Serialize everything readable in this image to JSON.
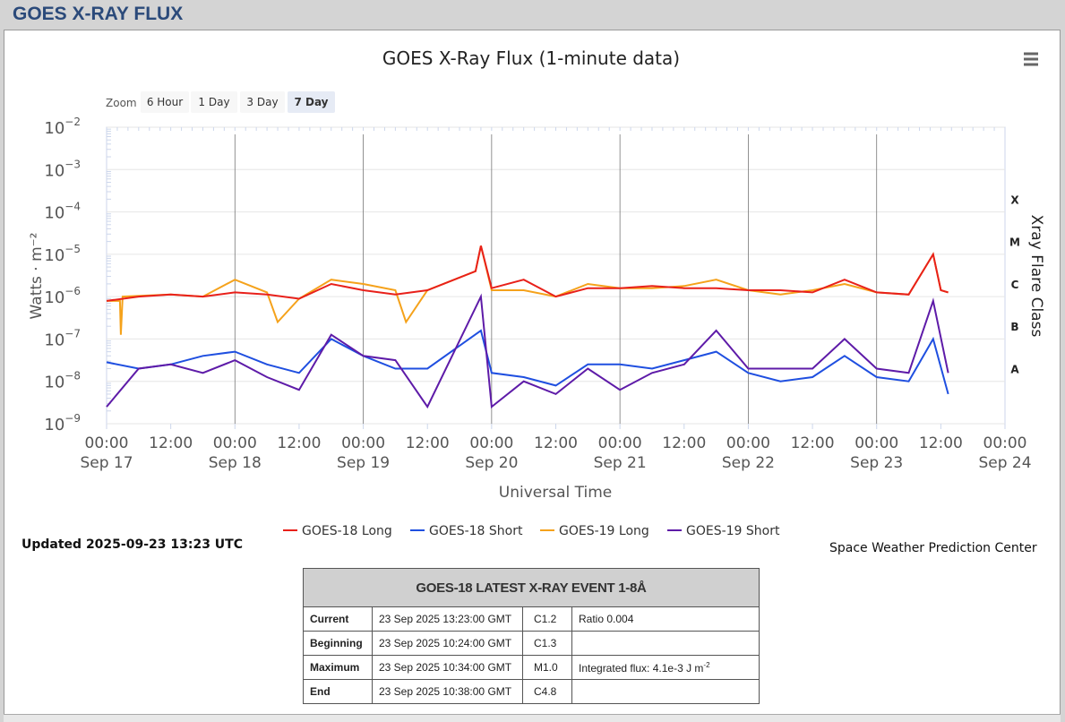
{
  "page": {
    "title": "GOES X-RAY FLUX"
  },
  "updated": "Updated 2025-09-23 13:23 UTC",
  "credit": "Space Weather Prediction Center",
  "zoom": {
    "label": "Zoom",
    "buttons": [
      "6 Hour",
      "1 Day",
      "3 Day",
      "7 Day"
    ],
    "active": "7 Day"
  },
  "menu_icon": "hamburger-menu-icon",
  "colors": {
    "g18_long": "#e8201a",
    "g18_short": "#1f4fe0",
    "g19_long": "#f5a21b",
    "g19_short": "#5e1ba8"
  },
  "chart_data": {
    "type": "line",
    "title": "GOES X-Ray Flux (1-minute data)",
    "xlabel": "Universal Time",
    "ylabel": "Watts · m⁻²",
    "y2label": "Xray Flare Class",
    "yscale": "log",
    "ylim": [
      1e-09,
      0.01
    ],
    "y_ticks": [
      {
        "base": "10",
        "exp": "-2"
      },
      {
        "base": "10",
        "exp": "-3"
      },
      {
        "base": "10",
        "exp": "-4"
      },
      {
        "base": "10",
        "exp": "-5"
      },
      {
        "base": "10",
        "exp": "-6"
      },
      {
        "base": "10",
        "exp": "-7"
      },
      {
        "base": "10",
        "exp": "-8"
      },
      {
        "base": "10",
        "exp": "-9"
      }
    ],
    "flare_classes": [
      "X",
      "M",
      "C",
      "B",
      "A"
    ],
    "x_range": [
      "2025-09-17 00:00",
      "2025-09-24 00:00"
    ],
    "x_ticks": [
      {
        "time": "00:00",
        "date": "Sep 17"
      },
      {
        "time": "12:00",
        "date": ""
      },
      {
        "time": "00:00",
        "date": "Sep 18"
      },
      {
        "time": "12:00",
        "date": ""
      },
      {
        "time": "00:00",
        "date": "Sep 19"
      },
      {
        "time": "12:00",
        "date": ""
      },
      {
        "time": "00:00",
        "date": "Sep 20"
      },
      {
        "time": "12:00",
        "date": ""
      },
      {
        "time": "00:00",
        "date": "Sep 21"
      },
      {
        "time": "12:00",
        "date": ""
      },
      {
        "time": "00:00",
        "date": "Sep 22"
      },
      {
        "time": "12:00",
        "date": ""
      },
      {
        "time": "00:00",
        "date": "Sep 23"
      },
      {
        "time": "12:00",
        "date": ""
      },
      {
        "time": "00:00",
        "date": "Sep 24"
      }
    ],
    "series": [
      {
        "name": "GOES-18 Long",
        "color": "#e8201a",
        "log10_flux": [
          [
            "2025-09-17 00:00",
            -6.1
          ],
          [
            "2025-09-17 06:00",
            -6.0
          ],
          [
            "2025-09-17 12:00",
            -5.95
          ],
          [
            "2025-09-17 18:00",
            -6.0
          ],
          [
            "2025-09-18 00:00",
            -5.9
          ],
          [
            "2025-09-18 06:00",
            -5.95
          ],
          [
            "2025-09-18 12:00",
            -6.05
          ],
          [
            "2025-09-18 18:00",
            -5.7
          ],
          [
            "2025-09-19 00:00",
            -5.85
          ],
          [
            "2025-09-19 06:00",
            -5.95
          ],
          [
            "2025-09-19 12:00",
            -5.85
          ],
          [
            "2025-09-19 21:00",
            -5.4
          ],
          [
            "2025-09-19 22:00",
            -4.8
          ],
          [
            "2025-09-20 00:00",
            -5.8
          ],
          [
            "2025-09-20 06:00",
            -5.6
          ],
          [
            "2025-09-20 12:00",
            -6.0
          ],
          [
            "2025-09-20 18:00",
            -5.8
          ],
          [
            "2025-09-21 00:00",
            -5.8
          ],
          [
            "2025-09-21 06:00",
            -5.75
          ],
          [
            "2025-09-21 12:00",
            -5.8
          ],
          [
            "2025-09-21 18:00",
            -5.8
          ],
          [
            "2025-09-22 00:00",
            -5.85
          ],
          [
            "2025-09-22 06:00",
            -5.85
          ],
          [
            "2025-09-22 12:00",
            -5.9
          ],
          [
            "2025-09-22 18:00",
            -5.6
          ],
          [
            "2025-09-23 00:00",
            -5.9
          ],
          [
            "2025-09-23 06:00",
            -5.95
          ],
          [
            "2025-09-23 10:34",
            -5.0
          ],
          [
            "2025-09-23 12:00",
            -5.85
          ],
          [
            "2025-09-23 13:23",
            -5.9
          ]
        ]
      },
      {
        "name": "GOES-18 Short",
        "color": "#1f4fe0",
        "log10_flux": [
          [
            "2025-09-17 00:00",
            -7.55
          ],
          [
            "2025-09-17 06:00",
            -7.7
          ],
          [
            "2025-09-17 12:00",
            -7.6
          ],
          [
            "2025-09-17 18:00",
            -7.4
          ],
          [
            "2025-09-18 00:00",
            -7.3
          ],
          [
            "2025-09-18 06:00",
            -7.6
          ],
          [
            "2025-09-18 12:00",
            -7.8
          ],
          [
            "2025-09-18 18:00",
            -7.0
          ],
          [
            "2025-09-19 00:00",
            -7.4
          ],
          [
            "2025-09-19 06:00",
            -7.7
          ],
          [
            "2025-09-19 12:00",
            -7.7
          ],
          [
            "2025-09-19 22:00",
            -6.8
          ],
          [
            "2025-09-20 00:00",
            -7.8
          ],
          [
            "2025-09-20 06:00",
            -7.9
          ],
          [
            "2025-09-20 12:00",
            -8.1
          ],
          [
            "2025-09-20 18:00",
            -7.6
          ],
          [
            "2025-09-21 00:00",
            -7.6
          ],
          [
            "2025-09-21 06:00",
            -7.7
          ],
          [
            "2025-09-21 12:00",
            -7.5
          ],
          [
            "2025-09-21 18:00",
            -7.3
          ],
          [
            "2025-09-22 00:00",
            -7.8
          ],
          [
            "2025-09-22 06:00",
            -8.0
          ],
          [
            "2025-09-22 12:00",
            -7.9
          ],
          [
            "2025-09-22 18:00",
            -7.4
          ],
          [
            "2025-09-23 00:00",
            -7.9
          ],
          [
            "2025-09-23 06:00",
            -8.0
          ],
          [
            "2025-09-23 10:34",
            -7.0
          ],
          [
            "2025-09-23 13:23",
            -8.3
          ]
        ]
      },
      {
        "name": "GOES-19 Long",
        "color": "#f5a21b",
        "log10_flux": [
          [
            "2025-09-17 00:00",
            -6.1
          ],
          [
            "2025-09-17 02:30",
            -6.1
          ],
          [
            "2025-09-17 02:40",
            -6.9
          ],
          [
            "2025-09-17 03:00",
            -6.0
          ],
          [
            "2025-09-17 12:00",
            -5.95
          ],
          [
            "2025-09-17 18:00",
            -6.0
          ],
          [
            "2025-09-18 00:00",
            -5.6
          ],
          [
            "2025-09-18 06:00",
            -5.9
          ],
          [
            "2025-09-18 08:00",
            -6.6
          ],
          [
            "2025-09-18 12:00",
            -6.05
          ],
          [
            "2025-09-18 18:00",
            -5.6
          ],
          [
            "2025-09-19 00:00",
            -5.7
          ],
          [
            "2025-09-19 06:00",
            -5.85
          ],
          [
            "2025-09-19 08:00",
            -6.6
          ],
          [
            "2025-09-19 12:00",
            -5.85
          ],
          [
            "2025-09-19 21:00",
            -5.4
          ],
          [
            "2025-09-19 22:00",
            -4.8
          ],
          [
            "2025-09-20 00:00",
            -5.85
          ],
          [
            "2025-09-20 06:00",
            -5.85
          ],
          [
            "2025-09-20 12:00",
            -6.0
          ],
          [
            "2025-09-20 18:00",
            -5.7
          ],
          [
            "2025-09-21 00:00",
            -5.8
          ],
          [
            "2025-09-21 06:00",
            -5.8
          ],
          [
            "2025-09-21 12:00",
            -5.75
          ],
          [
            "2025-09-21 18:00",
            -5.6
          ],
          [
            "2025-09-22 00:00",
            -5.85
          ],
          [
            "2025-09-22 06:00",
            -5.95
          ],
          [
            "2025-09-22 12:00",
            -5.85
          ],
          [
            "2025-09-22 18:00",
            -5.7
          ],
          [
            "2025-09-23 00:00",
            -5.9
          ],
          [
            "2025-09-23 06:00",
            -5.95
          ],
          [
            "2025-09-23 10:34",
            -5.0
          ],
          [
            "2025-09-23 12:00",
            -5.85
          ],
          [
            "2025-09-23 13:23",
            -5.9
          ]
        ]
      },
      {
        "name": "GOES-19 Short",
        "color": "#5e1ba8",
        "log10_flux": [
          [
            "2025-09-17 00:00",
            -8.6
          ],
          [
            "2025-09-17 06:00",
            -7.7
          ],
          [
            "2025-09-17 12:00",
            -7.6
          ],
          [
            "2025-09-17 18:00",
            -7.8
          ],
          [
            "2025-09-18 00:00",
            -7.5
          ],
          [
            "2025-09-18 06:00",
            -7.9
          ],
          [
            "2025-09-18 12:00",
            -8.2
          ],
          [
            "2025-09-18 18:00",
            -6.9
          ],
          [
            "2025-09-19 00:00",
            -7.4
          ],
          [
            "2025-09-19 06:00",
            -7.5
          ],
          [
            "2025-09-19 12:00",
            -8.6
          ],
          [
            "2025-09-19 22:00",
            -6.0
          ],
          [
            "2025-09-20 00:00",
            -8.6
          ],
          [
            "2025-09-20 06:00",
            -8.0
          ],
          [
            "2025-09-20 12:00",
            -8.3
          ],
          [
            "2025-09-20 18:00",
            -7.7
          ],
          [
            "2025-09-21 00:00",
            -8.2
          ],
          [
            "2025-09-21 06:00",
            -7.8
          ],
          [
            "2025-09-21 12:00",
            -7.6
          ],
          [
            "2025-09-21 18:00",
            -6.8
          ],
          [
            "2025-09-22 00:00",
            -7.7
          ],
          [
            "2025-09-22 06:00",
            -7.7
          ],
          [
            "2025-09-22 12:00",
            -7.7
          ],
          [
            "2025-09-22 18:00",
            -7.0
          ],
          [
            "2025-09-23 00:00",
            -7.7
          ],
          [
            "2025-09-23 06:00",
            -7.8
          ],
          [
            "2025-09-23 10:34",
            -6.1
          ],
          [
            "2025-09-23 13:23",
            -7.8
          ]
        ]
      }
    ]
  },
  "event_table": {
    "title": "GOES-18 LATEST X-RAY EVENT 1-8Å",
    "rows": [
      {
        "label": "Current",
        "time": "23 Sep 2025 13:23:00 GMT",
        "class": "C1.2",
        "note": "Ratio 0.004",
        "note_sup": ""
      },
      {
        "label": "Beginning",
        "time": "23 Sep 2025 10:24:00 GMT",
        "class": "C1.3",
        "note": "",
        "note_sup": ""
      },
      {
        "label": "Maximum",
        "time": "23 Sep 2025 10:34:00 GMT",
        "class": "M1.0",
        "note": "Integrated flux: 4.1e-3 J m",
        "note_sup": "-2"
      },
      {
        "label": "End",
        "time": "23 Sep 2025 10:38:00 GMT",
        "class": "C4.8",
        "note": "",
        "note_sup": ""
      }
    ]
  }
}
